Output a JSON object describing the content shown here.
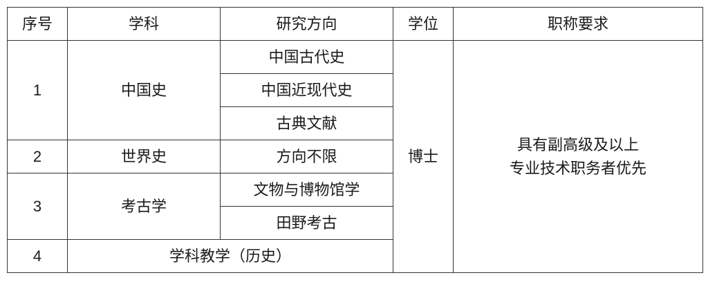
{
  "headers": [
    "序号",
    "学科",
    "研究方向",
    "学位",
    "职称要求"
  ],
  "groups": [
    {
      "index": "1",
      "subject": "中国史",
      "directions": [
        "中国古代史",
        "中国近现代史",
        "古典文献"
      ]
    },
    {
      "index": "2",
      "subject": "世界史",
      "directions": [
        "方向不限"
      ]
    },
    {
      "index": "3",
      "subject": "考古学",
      "directions": [
        "文物与博物馆学",
        "田野考古"
      ]
    },
    {
      "index": "4",
      "subject_direction": "学科教学（历史）"
    }
  ],
  "degree": "博士",
  "title_requirement": [
    "具有副高级及以上",
    "专业技术职务者优先"
  ]
}
